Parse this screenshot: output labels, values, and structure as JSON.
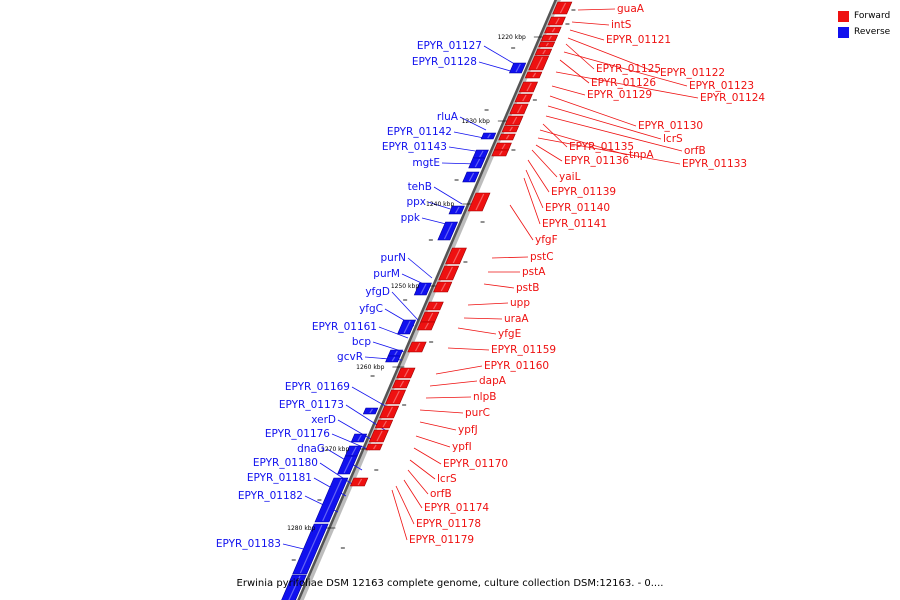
{
  "caption": "Erwinia pyrifoliae DSM 12163 complete genome, culture collection DSM:12163. - 0....",
  "legend": {
    "forward_label": "Forward",
    "reverse_label": "Reverse",
    "forward_color": "#ee1111",
    "reverse_color": "#1111ee"
  },
  "ticks": [
    {
      "label": "1220 kbp",
      "pos": 1220
    },
    {
      "label": "1230 kbp",
      "pos": 1230
    },
    {
      "label": "1240 kbp",
      "pos": 1240
    },
    {
      "label": "1250 kbp",
      "pos": 1250
    },
    {
      "label": "1260 kbp",
      "pos": 1260
    },
    {
      "label": "1270 kbp",
      "pos": 1270
    },
    {
      "label": "1280 kbp",
      "pos": 1280
    }
  ],
  "forward_genes": [
    "guaA",
    "intS",
    "EPYR_01121",
    "EPYR_01122",
    "EPYR_01125",
    "EPYR_01123",
    "EPYR_01126",
    "EPYR_01124",
    "EPYR_01129",
    "EPYR_01130",
    "lcrS",
    "orfB",
    "EPYR_01135",
    "tnpA",
    "EPYR_01133",
    "EPYR_01136",
    "yaiL",
    "EPYR_01139",
    "EPYR_01140",
    "EPYR_01141",
    "yfgF",
    "pstC",
    "pstA",
    "pstB",
    "upp",
    "uraA",
    "yfgE",
    "EPYR_01159",
    "EPYR_01160",
    "dapA",
    "nlpB",
    "purC",
    "ypfJ",
    "ypfI",
    "EPYR_01170",
    "lcrS",
    "orfB",
    "EPYR_01174",
    "EPYR_01178",
    "EPYR_01179"
  ],
  "reverse_genes": [
    "EPYR_01127",
    "EPYR_01128",
    "rluA",
    "EPYR_01142",
    "EPYR_01143",
    "mgtE",
    "tehB",
    "ppx",
    "ppk",
    "purN",
    "purM",
    "yfgD",
    "yfgC",
    "EPYR_01161",
    "bcp",
    "gcvR",
    "EPYR_01169",
    "EPYR_01173",
    "xerD",
    "EPYR_01176",
    "dnaG",
    "EPYR_01180",
    "EPYR_01181",
    "EPYR_01182",
    "EPYR_01183"
  ]
}
